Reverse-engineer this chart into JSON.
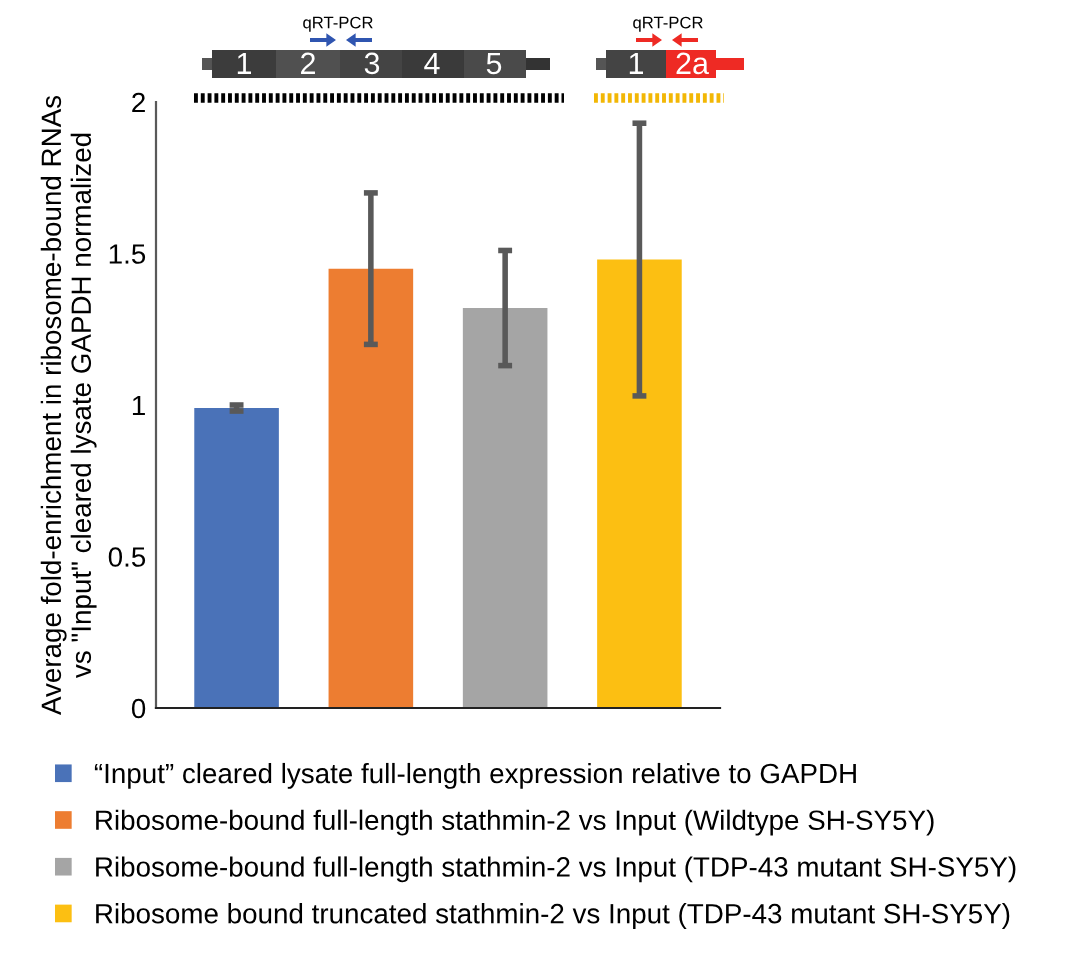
{
  "chart_data": {
    "type": "bar",
    "ylabel": "Average fold-enrichment in ribosome-bound RNAs\nvs \"Input\" cleared lysate GAPDH normalized",
    "categories": [
      null,
      null,
      null,
      null
    ],
    "series": [
      {
        "name": "“Input” cleared lysate full-length expression relative to GAPDH",
        "color": "#4a72b8",
        "values": [
          0.99,
          null,
          null,
          null
        ],
        "errors": [
          0.01,
          null,
          null,
          null
        ]
      },
      {
        "name": "Ribosome-bound full-length stathmin-2 vs Input (Wildtype SH-SY5Y)",
        "color": "#ed7d31",
        "values": [
          null,
          1.45,
          null,
          null
        ],
        "errors": [
          null,
          0.25,
          null,
          null
        ]
      },
      {
        "name": "Ribosome-bound full-length stathmin-2 vs Input (TDP-43 mutant SH-SY5Y)",
        "color": "#a5a5a5",
        "values": [
          null,
          null,
          1.32,
          null
        ],
        "errors": [
          null,
          null,
          0.19,
          null
        ]
      },
      {
        "name": "Ribosome bound truncated stathmin-2 vs Input (TDP-43 mutant SH-SY5Y)",
        "color": "#fcbf12",
        "values": [
          null,
          null,
          null,
          1.48
        ],
        "errors": [
          null,
          null,
          null,
          0.45
        ]
      }
    ],
    "ylim": [
      0,
      2
    ],
    "yticks": [
      0,
      0.5,
      1,
      1.5,
      2
    ],
    "grid": false,
    "legend": "bottom",
    "annotations": [
      "qRT-PCR",
      "1",
      "2",
      "3",
      "4",
      "5",
      "qRT-PCR",
      "1",
      "2a"
    ]
  }
}
